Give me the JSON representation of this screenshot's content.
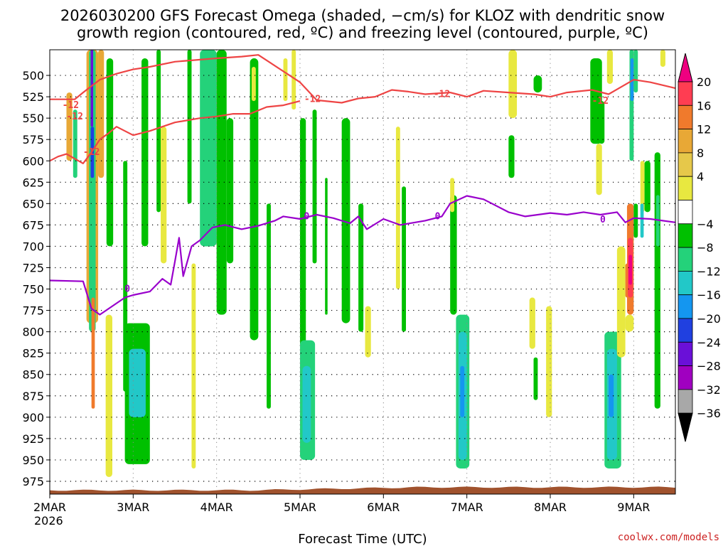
{
  "title": {
    "line1": "2026030200 GFS Forecast Omega (shaded, −cm/s) for KLOZ with dendritic snow",
    "line2": "growth region (contoured, red, ºC) and freezing level (contoured, purple, ºC)"
  },
  "credit": "coolwx.com/models",
  "colors": {
    "red_contour": "#ee4444",
    "purple_contour": "#9900cc",
    "terrain": "#a0522d"
  },
  "chart_data": {
    "type": "heatmap",
    "title": "2026030200 GFS Forecast Omega (shaded, −cm/s) for KLOZ with dendritic snow growth region (contoured, red, ºC) and freezing level (contoured, purple, ºC)",
    "xlabel": "Forecast Time (UTC)",
    "ylabel": "",
    "x_ticks": [
      "2MAR",
      "3MAR",
      "4MAR",
      "5MAR",
      "6MAR",
      "7MAR",
      "8MAR",
      "9MAR"
    ],
    "x_year_label": "2026",
    "y_ticks": [
      500,
      525,
      550,
      575,
      600,
      625,
      650,
      675,
      700,
      725,
      750,
      775,
      800,
      825,
      850,
      875,
      900,
      925,
      950,
      975
    ],
    "xlim": [
      0,
      7.5
    ],
    "ylim": [
      470,
      990
    ],
    "colorbar": {
      "labels": [
        "20",
        "16",
        "12",
        "8",
        "4",
        "−4",
        "−8",
        "−12",
        "−16",
        "−20",
        "−24",
        "−28",
        "−32",
        "−36"
      ],
      "colors": [
        "#ff3d52",
        "#f07a2c",
        "#e8a836",
        "#e6c84a",
        "#e8e840",
        "#ffffff",
        "#00c000",
        "#24d27a",
        "#22c8c8",
        "#1496f0",
        "#2040e0",
        "#6a10d8",
        "#a000c0",
        "#a8a8a8"
      ],
      "top_arrow_color": "#ee0080",
      "bottom_arrow_color": "#000000"
    },
    "contours": [
      {
        "name": "dendritic-upper",
        "color": "#ee4444",
        "label": "-12",
        "label_positions": [
          [
            0.25,
            535
          ],
          [
            3.15,
            528
          ],
          [
            4.7,
            522
          ],
          [
            6.6,
            530
          ]
        ],
        "points": [
          [
            0,
            528
          ],
          [
            0.3,
            528
          ],
          [
            0.4,
            520
          ],
          [
            0.6,
            505
          ],
          [
            0.8,
            498
          ],
          [
            1.0,
            493
          ],
          [
            1.2,
            490
          ],
          [
            1.5,
            484
          ],
          [
            2.0,
            480
          ],
          [
            2.3,
            478
          ],
          [
            2.5,
            476
          ],
          [
            3.0,
            508
          ],
          [
            3.2,
            529
          ],
          [
            3.5,
            532
          ],
          [
            3.7,
            527
          ],
          [
            3.9,
            525
          ],
          [
            4.1,
            517
          ],
          [
            4.3,
            519
          ],
          [
            4.5,
            522
          ],
          [
            4.8,
            520
          ],
          [
            5.0,
            525
          ],
          [
            5.2,
            518
          ],
          [
            5.5,
            520
          ],
          [
            5.8,
            522
          ],
          [
            6.0,
            525
          ],
          [
            6.2,
            520
          ],
          [
            6.5,
            517
          ],
          [
            6.7,
            522
          ],
          [
            7.0,
            505
          ],
          [
            7.2,
            508
          ],
          [
            7.5,
            515
          ]
        ]
      },
      {
        "name": "dendritic-lower",
        "color": "#ee4444",
        "label": "-12",
        "label_positions": [
          [
            0.5,
            590
          ],
          [
            0.3,
            548
          ]
        ],
        "points": [
          [
            0,
            600
          ],
          [
            0.1,
            595
          ],
          [
            0.2,
            592
          ],
          [
            0.4,
            603
          ],
          [
            0.5,
            590
          ],
          [
            0.6,
            575
          ],
          [
            0.7,
            568
          ],
          [
            0.8,
            560
          ],
          [
            1.0,
            570
          ],
          [
            1.2,
            565
          ],
          [
            1.5,
            555
          ],
          [
            1.8,
            550
          ],
          [
            2.0,
            548
          ],
          [
            2.2,
            545
          ],
          [
            2.4,
            545
          ],
          [
            2.6,
            537
          ],
          [
            2.8,
            535
          ],
          [
            3.0,
            530
          ]
        ]
      }
    ],
    "freezing_level": {
      "name": "freezing-level",
      "color": "#9900cc",
      "label": "0",
      "label_positions": [
        [
          0.93,
          750
        ],
        [
          3.08,
          665
        ],
        [
          4.65,
          665
        ],
        [
          6.63,
          669
        ]
      ],
      "points": [
        [
          0,
          740
        ],
        [
          0.4,
          741
        ],
        [
          0.5,
          773
        ],
        [
          0.6,
          780
        ],
        [
          0.75,
          770
        ],
        [
          0.9,
          760
        ],
        [
          1.0,
          757
        ],
        [
          1.2,
          753
        ],
        [
          1.35,
          738
        ],
        [
          1.45,
          745
        ],
        [
          1.5,
          718
        ],
        [
          1.55,
          690
        ],
        [
          1.6,
          735
        ],
        [
          1.7,
          700
        ],
        [
          1.8,
          693
        ],
        [
          1.95,
          678
        ],
        [
          2.1,
          675
        ],
        [
          2.3,
          680
        ],
        [
          2.5,
          676
        ],
        [
          2.7,
          670
        ],
        [
          2.8,
          665
        ],
        [
          3.0,
          668
        ],
        [
          3.2,
          663
        ],
        [
          3.4,
          667
        ],
        [
          3.6,
          673
        ],
        [
          3.7,
          665
        ],
        [
          3.8,
          680
        ],
        [
          4.0,
          668
        ],
        [
          4.2,
          675
        ],
        [
          4.5,
          670
        ],
        [
          4.7,
          665
        ],
        [
          4.8,
          650
        ],
        [
          5.0,
          641
        ],
        [
          5.2,
          645
        ],
        [
          5.3,
          650
        ],
        [
          5.5,
          660
        ],
        [
          5.7,
          665
        ],
        [
          6.0,
          661
        ],
        [
          6.2,
          663
        ],
        [
          6.4,
          660
        ],
        [
          6.6,
          663
        ],
        [
          6.8,
          660
        ],
        [
          6.9,
          672
        ],
        [
          7.0,
          667
        ],
        [
          7.2,
          668
        ],
        [
          7.5,
          672
        ]
      ]
    },
    "omega_cells": [
      {
        "x0": 0.44,
        "x1": 0.58,
        "y0": 470,
        "y1": 790,
        "value": 9
      },
      {
        "x0": 0.47,
        "x1": 0.55,
        "y0": 470,
        "y1": 800,
        "value": -10
      },
      {
        "x0": 0.49,
        "x1": 0.52,
        "y0": 470,
        "y1": 560,
        "value": -24
      },
      {
        "x0": 0.49,
        "x1": 0.53,
        "y0": 560,
        "y1": 620,
        "value": -20
      },
      {
        "x0": 0.5,
        "x1": 0.54,
        "y0": 760,
        "y1": 890,
        "value": 12
      },
      {
        "x0": 0.2,
        "x1": 0.27,
        "y0": 520,
        "y1": 600,
        "value": 8
      },
      {
        "x0": 0.28,
        "x1": 0.33,
        "y0": 540,
        "y1": 620,
        "value": -8
      },
      {
        "x0": 0.58,
        "x1": 0.65,
        "y0": 470,
        "y1": 620,
        "value": 8
      },
      {
        "x0": 0.68,
        "x1": 0.76,
        "y0": 480,
        "y1": 700,
        "value": -6
      },
      {
        "x0": 0.67,
        "x1": 0.75,
        "y0": 780,
        "y1": 970,
        "value": 5
      },
      {
        "x0": 0.88,
        "x1": 0.93,
        "y0": 600,
        "y1": 870,
        "value": -6
      },
      {
        "x0": 0.9,
        "x1": 1.2,
        "y0": 790,
        "y1": 955,
        "value": -6
      },
      {
        "x0": 0.95,
        "x1": 1.15,
        "y0": 820,
        "y1": 900,
        "value": -12
      },
      {
        "x0": 1.1,
        "x1": 1.18,
        "y0": 480,
        "y1": 700,
        "value": -6
      },
      {
        "x0": 1.28,
        "x1": 1.33,
        "y0": 470,
        "y1": 660,
        "value": -7
      },
      {
        "x0": 1.33,
        "x1": 1.4,
        "y0": 560,
        "y1": 720,
        "value": 7
      },
      {
        "x0": 1.65,
        "x1": 1.7,
        "y0": 470,
        "y1": 650,
        "value": -6
      },
      {
        "x0": 1.7,
        "x1": 1.75,
        "y0": 720,
        "y1": 960,
        "value": 6
      },
      {
        "x0": 1.8,
        "x1": 2.0,
        "y0": 470,
        "y1": 700,
        "value": -8
      },
      {
        "x0": 2.0,
        "x1": 2.12,
        "y0": 470,
        "y1": 780,
        "value": -6
      },
      {
        "x0": 2.12,
        "x1": 2.2,
        "y0": 550,
        "y1": 720,
        "value": -6
      },
      {
        "x0": 2.4,
        "x1": 2.5,
        "y0": 480,
        "y1": 810,
        "value": -6
      },
      {
        "x0": 2.42,
        "x1": 2.47,
        "y0": 490,
        "y1": 530,
        "value": 5
      },
      {
        "x0": 2.6,
        "x1": 2.65,
        "y0": 650,
        "y1": 890,
        "value": -6
      },
      {
        "x0": 2.9,
        "x1": 2.95,
        "y0": 470,
        "y1": 540,
        "value": 6
      },
      {
        "x0": 2.8,
        "x1": 2.85,
        "y0": 480,
        "y1": 530,
        "value": 6
      },
      {
        "x0": 3.0,
        "x1": 3.07,
        "y0": 550,
        "y1": 870,
        "value": -6
      },
      {
        "x0": 3.15,
        "x1": 3.2,
        "y0": 540,
        "y1": 720,
        "value": -6
      },
      {
        "x0": 3.3,
        "x1": 3.33,
        "y0": 620,
        "y1": 780,
        "value": -6
      },
      {
        "x0": 3.0,
        "x1": 3.18,
        "y0": 810,
        "y1": 950,
        "value": -8
      },
      {
        "x0": 3.03,
        "x1": 3.13,
        "y0": 840,
        "y1": 930,
        "value": -12
      },
      {
        "x0": 3.5,
        "x1": 3.6,
        "y0": 550,
        "y1": 790,
        "value": -6
      },
      {
        "x0": 3.7,
        "x1": 3.76,
        "y0": 650,
        "y1": 800,
        "value": -6
      },
      {
        "x0": 3.78,
        "x1": 3.85,
        "y0": 770,
        "y1": 830,
        "value": 6
      },
      {
        "x0": 4.15,
        "x1": 4.2,
        "y0": 560,
        "y1": 750,
        "value": 6
      },
      {
        "x0": 4.22,
        "x1": 4.27,
        "y0": 630,
        "y1": 800,
        "value": -6
      },
      {
        "x0": 4.8,
        "x1": 4.88,
        "y0": 640,
        "y1": 780,
        "value": -6
      },
      {
        "x0": 4.8,
        "x1": 4.85,
        "y0": 620,
        "y1": 660,
        "value": 5
      },
      {
        "x0": 4.87,
        "x1": 5.03,
        "y0": 780,
        "y1": 960,
        "value": -8
      },
      {
        "x0": 4.9,
        "x1": 5.0,
        "y0": 800,
        "y1": 950,
        "value": -12
      },
      {
        "x0": 4.92,
        "x1": 4.97,
        "y0": 840,
        "y1": 900,
        "value": -16
      },
      {
        "x0": 5.5,
        "x1": 5.6,
        "y0": 470,
        "y1": 550,
        "value": 6
      },
      {
        "x0": 5.5,
        "x1": 5.57,
        "y0": 570,
        "y1": 620,
        "value": -6
      },
      {
        "x0": 5.75,
        "x1": 5.82,
        "y0": 760,
        "y1": 820,
        "value": 6
      },
      {
        "x0": 5.95,
        "x1": 6.02,
        "y0": 770,
        "y1": 900,
        "value": 6
      },
      {
        "x0": 5.8,
        "x1": 5.85,
        "y0": 830,
        "y1": 880,
        "value": -6
      },
      {
        "x0": 5.8,
        "x1": 5.9,
        "y0": 500,
        "y1": 520,
        "value": -6
      },
      {
        "x0": 6.48,
        "x1": 6.62,
        "y0": 480,
        "y1": 580,
        "value": -7
      },
      {
        "x0": 6.55,
        "x1": 6.62,
        "y0": 580,
        "y1": 640,
        "value": 7
      },
      {
        "x0": 6.58,
        "x1": 6.65,
        "y0": 530,
        "y1": 580,
        "value": -6
      },
      {
        "x0": 6.68,
        "x1": 6.75,
        "y0": 470,
        "y1": 510,
        "value": 7
      },
      {
        "x0": 6.65,
        "x1": 6.85,
        "y0": 800,
        "y1": 960,
        "value": -8
      },
      {
        "x0": 6.68,
        "x1": 6.8,
        "y0": 820,
        "y1": 950,
        "value": -12
      },
      {
        "x0": 6.7,
        "x1": 6.76,
        "y0": 850,
        "y1": 900,
        "value": -16
      },
      {
        "x0": 6.8,
        "x1": 6.9,
        "y0": 700,
        "y1": 830,
        "value": 6
      },
      {
        "x0": 6.9,
        "x1": 6.95,
        "y0": 720,
        "y1": 760,
        "value": 12
      },
      {
        "x0": 6.95,
        "x1": 7.0,
        "y0": 470,
        "y1": 600,
        "value": -10
      },
      {
        "x0": 6.96,
        "x1": 7.0,
        "y0": 480,
        "y1": 530,
        "value": -16
      },
      {
        "x0": 7.0,
        "x1": 7.05,
        "y0": 470,
        "y1": 520,
        "value": -8
      },
      {
        "x0": 7.08,
        "x1": 7.13,
        "y0": 600,
        "y1": 660,
        "value": 6
      },
      {
        "x0": 7.13,
        "x1": 7.2,
        "y0": 600,
        "y1": 660,
        "value": -6
      },
      {
        "x0": 6.92,
        "x1": 7.0,
        "y0": 650,
        "y1": 780,
        "value": 12
      },
      {
        "x0": 6.93,
        "x1": 6.99,
        "y0": 690,
        "y1": 760,
        "value": 18
      },
      {
        "x0": 6.94,
        "x1": 6.98,
        "y0": 710,
        "y1": 745,
        "value": 22
      },
      {
        "x0": 6.9,
        "x1": 7.0,
        "y0": 780,
        "y1": 800,
        "value": 6
      },
      {
        "x0": 7.25,
        "x1": 7.32,
        "y0": 590,
        "y1": 890,
        "value": -6
      },
      {
        "x0": 7.27,
        "x1": 7.31,
        "y0": 640,
        "y1": 700,
        "value": -10
      },
      {
        "x0": 7.32,
        "x1": 7.38,
        "y0": 470,
        "y1": 490,
        "value": 6
      },
      {
        "x0": 7.0,
        "x1": 7.05,
        "y0": 650,
        "y1": 690,
        "value": -6
      },
      {
        "x0": 7.08,
        "x1": 7.12,
        "y0": 650,
        "y1": 690,
        "value": -12
      }
    ]
  }
}
